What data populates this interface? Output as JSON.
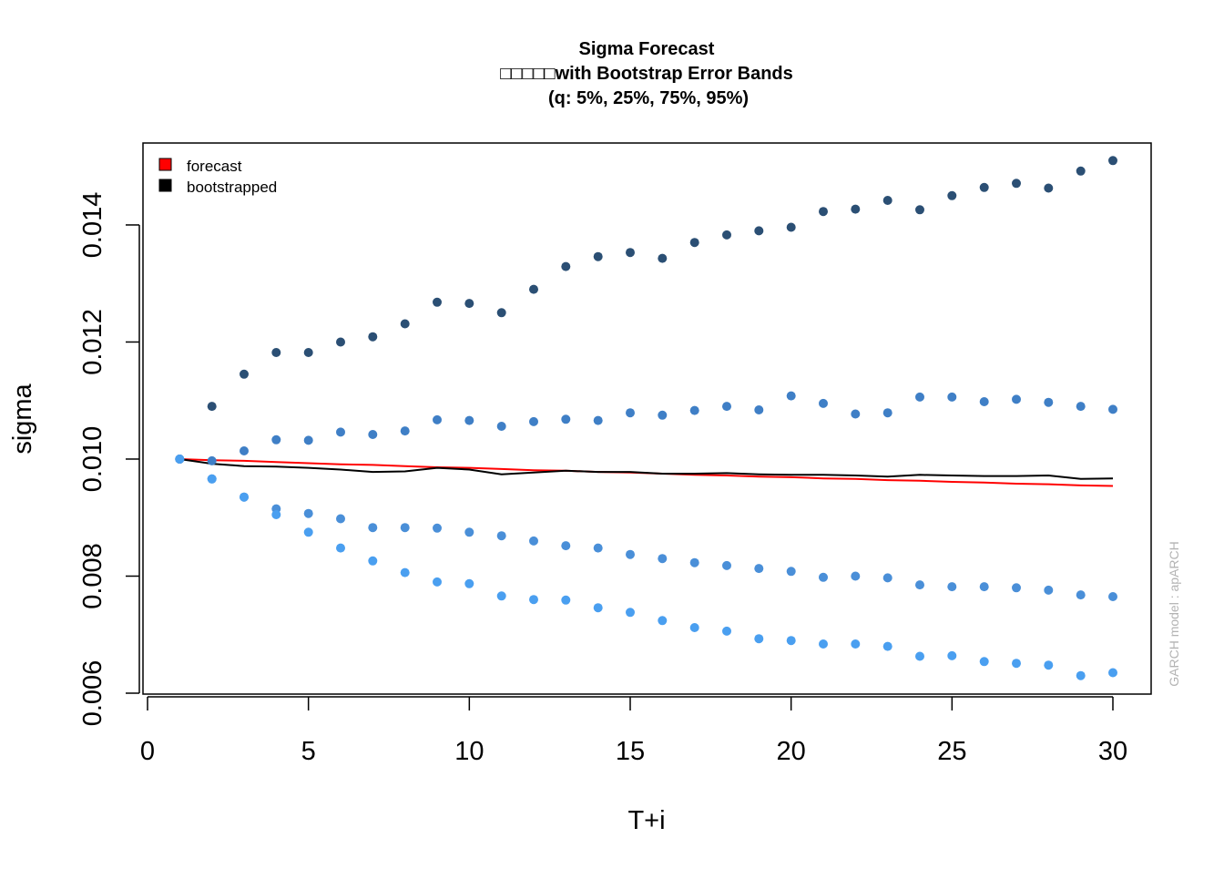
{
  "chart_data": {
    "type": "scatter",
    "title": "Sigma Forecast",
    "subtitle_lines": [
      "□□□□□with Bootstrap Error Bands",
      "(q: 5%, 25%, 75%, 95%)"
    ],
    "xlabel": "T+i",
    "ylabel": "sigma",
    "xlim": [
      0,
      30
    ],
    "ylim": [
      0.006,
      0.0154
    ],
    "x_ticks": [
      "0",
      "5",
      "10",
      "15",
      "20",
      "25",
      "30"
    ],
    "y_ticks": [
      "0.006",
      "0.008",
      "0.010",
      "0.012",
      "0.014"
    ],
    "x": [
      1,
      2,
      3,
      4,
      5,
      6,
      7,
      8,
      9,
      10,
      11,
      12,
      13,
      14,
      15,
      16,
      17,
      18,
      19,
      20,
      21,
      22,
      23,
      24,
      25,
      26,
      27,
      28,
      29,
      30
    ],
    "legend_position": "top-left",
    "legend": [
      {
        "label": "forecast",
        "color": "#ff0000"
      },
      {
        "label": "bootstrapped",
        "color": "#000000"
      }
    ],
    "side_note": "GARCH model : apARCH",
    "lines": [
      {
        "name": "forecast",
        "color": "#ff0000",
        "values": [
          0.01,
          0.00998,
          0.00997,
          0.00995,
          0.00993,
          0.00991,
          0.0099,
          0.00988,
          0.00986,
          0.00985,
          0.00983,
          0.00981,
          0.0098,
          0.00978,
          0.00977,
          0.00975,
          0.00973,
          0.00972,
          0.0097,
          0.00969,
          0.00967,
          0.00966,
          0.00964,
          0.00963,
          0.00961,
          0.0096,
          0.00958,
          0.00957,
          0.00955,
          0.00954
        ]
      },
      {
        "name": "bootstrapped",
        "color": "#000000",
        "values": [
          0.01,
          0.00992,
          0.00988,
          0.00987,
          0.00985,
          0.00982,
          0.00978,
          0.00979,
          0.00985,
          0.00982,
          0.00974,
          0.00977,
          0.0098,
          0.00978,
          0.00978,
          0.00975,
          0.00975,
          0.00976,
          0.00974,
          0.00973,
          0.00973,
          0.00972,
          0.0097,
          0.00973,
          0.00972,
          0.00971,
          0.00971,
          0.00972,
          0.00966,
          0.00967
        ]
      }
    ],
    "points": [
      {
        "name": "q95",
        "color": "#2b4f74",
        "values": [
          0.01,
          0.0109,
          0.01145,
          0.01182,
          0.01182,
          0.012,
          0.01209,
          0.01231,
          0.01268,
          0.01266,
          0.0125,
          0.0129,
          0.01329,
          0.01346,
          0.01353,
          0.01343,
          0.0137,
          0.01383,
          0.0139,
          0.01396,
          0.01423,
          0.01427,
          0.01442,
          0.01426,
          0.0145,
          0.01464,
          0.01471,
          0.01463,
          0.01492,
          0.0151
        ]
      },
      {
        "name": "q75",
        "color": "#3f7fc6",
        "values": [
          0.01,
          0.00997,
          0.01014,
          0.01033,
          0.01032,
          0.01046,
          0.01042,
          0.01048,
          0.01067,
          0.01066,
          0.01056,
          0.01064,
          0.01068,
          0.01066,
          0.01079,
          0.01075,
          0.01083,
          0.0109,
          0.01084,
          0.01108,
          0.01095,
          0.01077,
          0.01079,
          0.01106,
          0.01106,
          0.01098,
          0.01102,
          0.01097,
          0.0109,
          0.01085
        ]
      },
      {
        "name": "q25",
        "color": "#4a8fd8",
        "values": [
          0.01,
          0.00966,
          0.00935,
          0.00915,
          0.00907,
          0.00898,
          0.00883,
          0.00883,
          0.00882,
          0.00875,
          0.00869,
          0.0086,
          0.00852,
          0.00848,
          0.00837,
          0.0083,
          0.00823,
          0.00818,
          0.00813,
          0.00808,
          0.00798,
          0.008,
          0.00797,
          0.00785,
          0.00782,
          0.00782,
          0.0078,
          0.00776,
          0.00768,
          0.00765
        ]
      },
      {
        "name": "q05",
        "color": "#4a9ff0",
        "values": [
          0.01,
          0.00966,
          0.00935,
          0.00905,
          0.00875,
          0.00848,
          0.00826,
          0.00806,
          0.0079,
          0.00787,
          0.00766,
          0.0076,
          0.00759,
          0.00746,
          0.00738,
          0.00724,
          0.00712,
          0.00706,
          0.00693,
          0.0069,
          0.00684,
          0.00684,
          0.0068,
          0.00663,
          0.00664,
          0.00654,
          0.00651,
          0.00648,
          0.0063,
          0.00635
        ]
      }
    ]
  }
}
